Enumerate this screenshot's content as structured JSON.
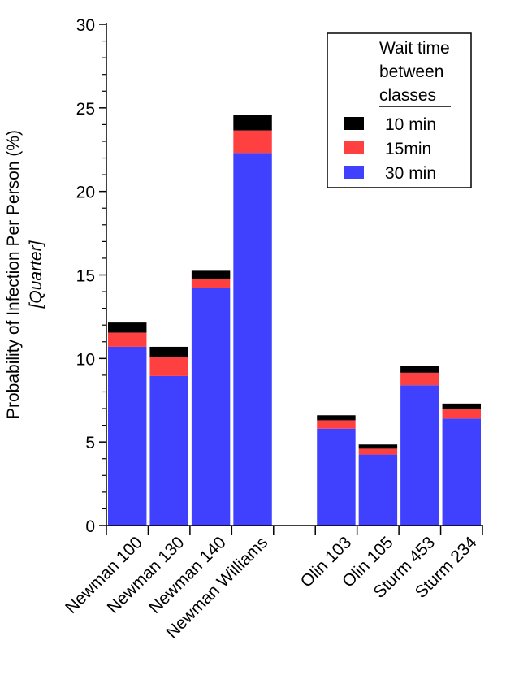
{
  "chart_data": {
    "type": "bar",
    "stacked": true,
    "ylabel": "Probability of Infection Per Person (%)",
    "ylabel2": "[Quarter]",
    "ylim": [
      0,
      30
    ],
    "yticks": [
      0,
      5,
      10,
      15,
      20,
      25,
      30
    ],
    "categories": [
      "Newman 100",
      "Newman 130",
      "Newman 140",
      "Newman Williams",
      "",
      "Olin 103",
      "Olin 105",
      "Sturm 453",
      "Sturm 234"
    ],
    "legend": {
      "title": [
        "Wait time",
        "between",
        "classes"
      ],
      "placement": "top-right"
    },
    "series": [
      {
        "name": "30 min",
        "color": "#4040ff",
        "values": [
          10.7,
          8.95,
          14.2,
          22.3,
          null,
          5.8,
          4.25,
          8.4,
          6.4
        ]
      },
      {
        "name": "15min",
        "color": "#ff4040",
        "values": [
          0.85,
          1.15,
          0.55,
          1.35,
          null,
          0.5,
          0.35,
          0.75,
          0.55
        ]
      },
      {
        "name": "10 min",
        "color": "#000000",
        "values": [
          0.6,
          0.6,
          0.5,
          0.95,
          null,
          0.3,
          0.25,
          0.4,
          0.35
        ]
      }
    ]
  }
}
